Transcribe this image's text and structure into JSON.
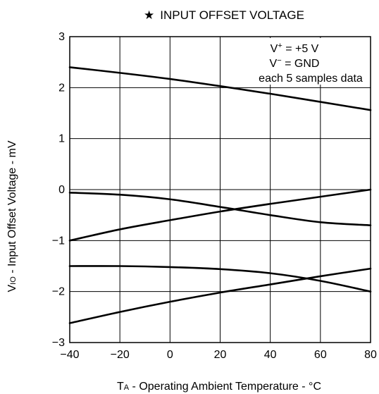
{
  "chart_data": {
    "type": "line",
    "title": "INPUT OFFSET VOLTAGE",
    "title_marker": "★",
    "xlabel": {
      "symbol": "T",
      "subscript": "A",
      "text": " - Operating Ambient Temperature - °C"
    },
    "ylabel": {
      "symbol": "V",
      "subscript": "IO",
      "text": " - Input Offset Voltage - mV"
    },
    "xlim": [
      -40,
      80
    ],
    "ylim": [
      -3,
      3
    ],
    "x_ticks": [
      "−40",
      "−20",
      "0",
      "20",
      "40",
      "60",
      "80"
    ],
    "y_ticks": [
      "3",
      "2",
      "1",
      "0",
      "−1",
      "−2",
      "−3"
    ],
    "x_tick_values": [
      -40,
      -20,
      0,
      20,
      40,
      60,
      80
    ],
    "y_tick_values": [
      3,
      2,
      1,
      0,
      -1,
      -2,
      -3
    ],
    "grid": true,
    "annotations": [
      {
        "base": "V",
        "sup": "+",
        "rest": " = +5 V"
      },
      {
        "base": "V",
        "sup": "−",
        "rest": " = GND"
      },
      {
        "base": "each 5 samples data",
        "sup": "",
        "rest": ""
      }
    ],
    "series": [
      {
        "x": [
          -40,
          -20,
          0,
          20,
          40,
          60,
          80
        ],
        "values": [
          2.4,
          2.29,
          2.17,
          2.03,
          1.88,
          1.72,
          1.56
        ]
      },
      {
        "x": [
          -40,
          -20,
          0,
          20,
          40,
          60,
          80
        ],
        "values": [
          -0.06,
          -0.1,
          -0.19,
          -0.34,
          -0.5,
          -0.64,
          -0.7
        ]
      },
      {
        "x": [
          -40,
          -20,
          0,
          20,
          40,
          60,
          80
        ],
        "values": [
          -1.0,
          -0.78,
          -0.6,
          -0.43,
          -0.28,
          -0.14,
          0.0
        ]
      },
      {
        "x": [
          -40,
          -20,
          0,
          20,
          40,
          60,
          80
        ],
        "values": [
          -1.5,
          -1.5,
          -1.52,
          -1.56,
          -1.64,
          -1.79,
          -2.0
        ]
      },
      {
        "x": [
          -40,
          -20,
          0,
          20,
          40,
          60,
          80
        ],
        "values": [
          -2.62,
          -2.4,
          -2.2,
          -2.02,
          -1.86,
          -1.7,
          -1.55
        ]
      }
    ]
  }
}
